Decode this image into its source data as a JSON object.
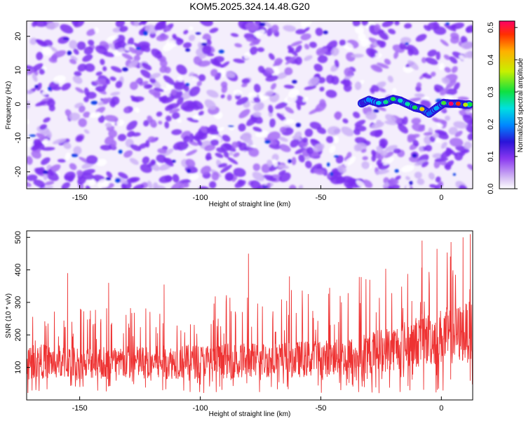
{
  "title": "KOM5.2025.324.14.48.G20",
  "chart_data": [
    {
      "type": "heatmap",
      "xlabel": "Height of straight line (km)",
      "ylabel": "Frequency (Hz)",
      "xlim": [
        -172,
        13
      ],
      "ylim": [
        -25,
        24.5
      ],
      "xticks": [
        -150,
        -100,
        -50,
        0
      ],
      "yticks": [
        -20,
        -10,
        0,
        10,
        20
      ],
      "colorbar": {
        "label": "Normalized spectral amplitude",
        "range": [
          0.0,
          0.52
        ],
        "ticks": [
          0.0,
          0.1,
          0.2,
          0.3,
          0.4,
          0.5
        ],
        "tick_labels": [
          "0.0",
          "0.1",
          "0.2",
          "0.3",
          "0.4",
          "0.5"
        ]
      },
      "signal_track": [
        {
          "x": -33,
          "freq": 0.2,
          "amplitude": 0.14
        },
        {
          "x": -30,
          "freq": 1.2,
          "amplitude": 0.2
        },
        {
          "x": -26,
          "freq": 0.3,
          "amplitude": 0.24
        },
        {
          "x": -23,
          "freq": 0.6,
          "amplitude": 0.28
        },
        {
          "x": -20,
          "freq": 1.5,
          "amplitude": 0.3
        },
        {
          "x": -17,
          "freq": 1.0,
          "amplitude": 0.26
        },
        {
          "x": -14,
          "freq": 0.0,
          "amplitude": 0.27
        },
        {
          "x": -11,
          "freq": -1.0,
          "amplitude": 0.3
        },
        {
          "x": -8,
          "freq": -1.5,
          "amplitude": 0.4
        },
        {
          "x": -5,
          "freq": -2.8,
          "amplitude": 0.18
        },
        {
          "x": -2,
          "freq": -1.2,
          "amplitude": 0.22
        },
        {
          "x": 1,
          "freq": 0.3,
          "amplitude": 0.32
        },
        {
          "x": 4,
          "freq": 0.1,
          "amplitude": 0.52
        },
        {
          "x": 7,
          "freq": 0.1,
          "amplitude": 0.48
        },
        {
          "x": 10,
          "freq": -0.2,
          "amplitude": 0.36
        },
        {
          "x": 12,
          "freq": -0.1,
          "amplitude": 0.3
        }
      ]
    },
    {
      "type": "line",
      "xlabel": "Height of straight line (km)",
      "ylabel": "SNR (10 * v/v)",
      "xlim": [
        -172,
        13
      ],
      "ylim": [
        0,
        520
      ],
      "xticks": [
        -150,
        -100,
        -50,
        0
      ],
      "yticks": [
        100,
        200,
        300,
        400,
        500
      ],
      "series": [
        {
          "name": "SNR",
          "color": "#ee3333",
          "envelope": {
            "x": [
              -172,
              -150,
              -120,
              -90,
              -60,
              -40,
              -30,
              -20,
              -10,
              0,
              13
            ],
            "median": [
              120,
              115,
              115,
              120,
              125,
              130,
              145,
              160,
              180,
              195,
              210
            ],
            "peak": [
              270,
              290,
              300,
              330,
              340,
              360,
              400,
              420,
              450,
              480,
              510
            ]
          },
          "spikes": [
            {
              "x": -155,
              "y": 390
            },
            {
              "x": -138,
              "y": 360
            },
            {
              "x": -115,
              "y": 355
            },
            {
              "x": -80,
              "y": 450
            },
            {
              "x": -63,
              "y": 380
            },
            {
              "x": -8,
              "y": 490
            },
            {
              "x": 9,
              "y": 500
            },
            {
              "x": 12,
              "y": 510
            }
          ]
        }
      ]
    }
  ]
}
